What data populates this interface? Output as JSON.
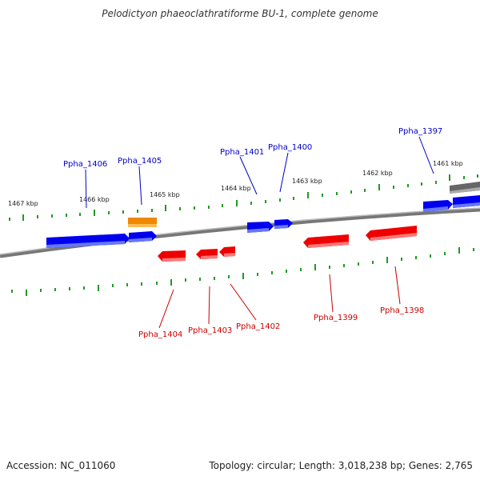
{
  "title": "Pelodictyon phaeoclathratiforme BU-1, complete genome",
  "footer": {
    "accession": "Accession: NC_011060",
    "summary": "Topology: circular; Length: 3,018,238 bp; Genes: 2,765"
  },
  "scale_labels": [
    "1467 kbp",
    "1466 kbp",
    "1465 kbp",
    "1464 kbp",
    "1463 kbp",
    "1462 kbp",
    "1461 kbp"
  ],
  "colors": {
    "forward_gene": "#0000ee",
    "reverse_gene": "#ee0000",
    "rna_gene": "#ee8800",
    "pseudo_gene": "#666666",
    "backbone": "#888888",
    "tick": "#229922"
  },
  "gene_labels": {
    "forward": [
      "Ppha_1406",
      "Ppha_1405",
      "Ppha_1401",
      "Ppha_1400",
      "Ppha_1397"
    ],
    "reverse": [
      "Ppha_1404",
      "Ppha_1403",
      "Ppha_1402",
      "Ppha_1399",
      "Ppha_1398"
    ]
  }
}
